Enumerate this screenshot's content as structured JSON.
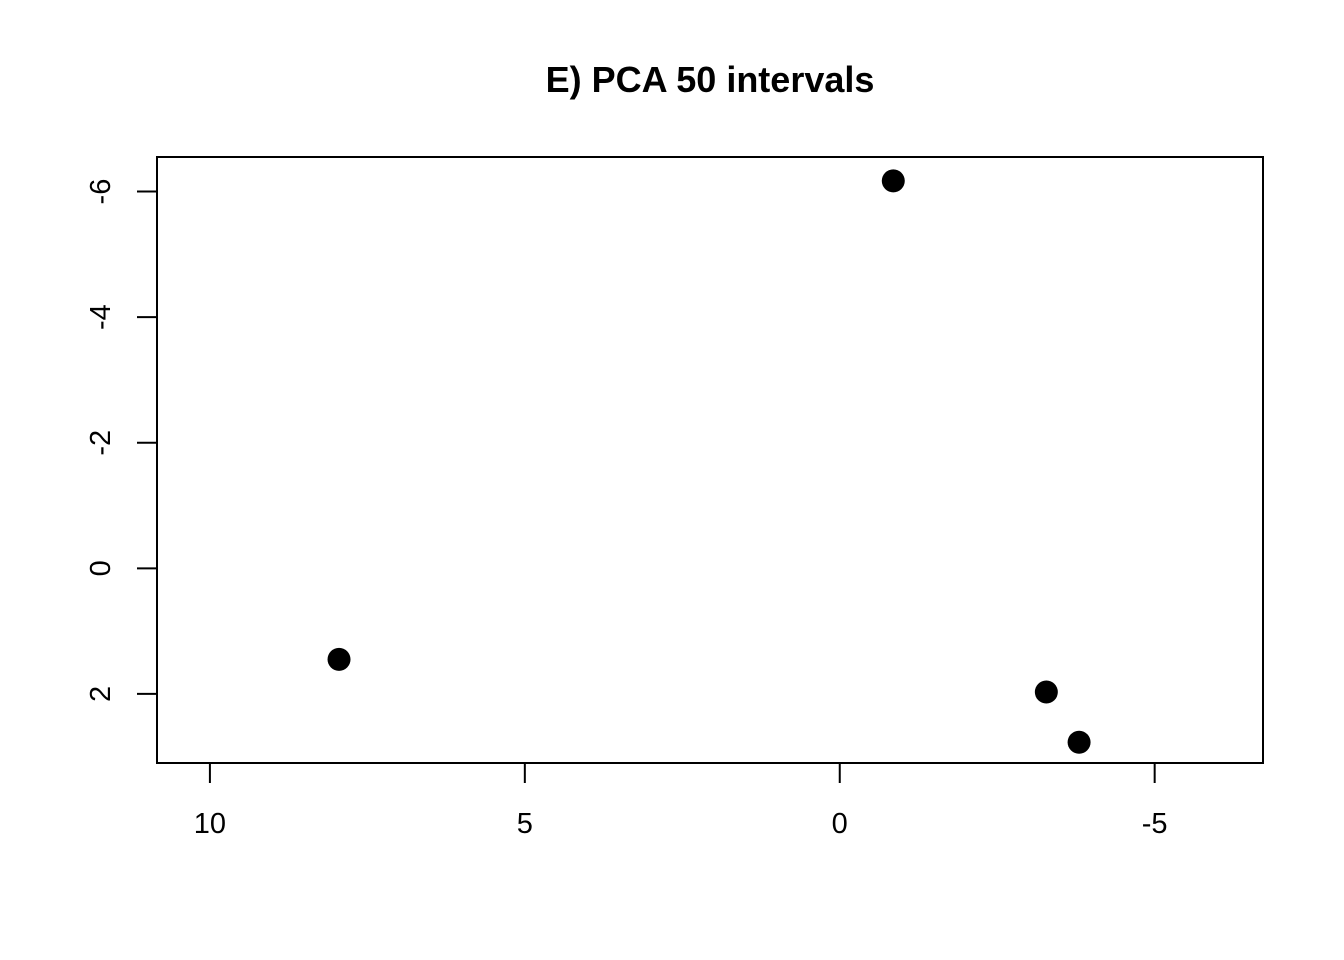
{
  "chart_data": {
    "type": "scatter",
    "title": "E) PCA 50 intervals",
    "xlabel": "",
    "ylabel": "",
    "x_reversed": true,
    "y_reversed": true,
    "xlim": [
      10.84,
      -6.72
    ],
    "ylim": [
      3.1,
      -6.55
    ],
    "x_ticks": [
      10,
      5,
      0,
      -5
    ],
    "x_tick_labels": [
      "10",
      "5",
      "0",
      "-5"
    ],
    "y_ticks": [
      -6,
      -4,
      -2,
      0,
      2
    ],
    "y_tick_labels": [
      "-6",
      "-4",
      "-2",
      "0",
      "2"
    ],
    "grid": false,
    "marker_color": "#000000",
    "points": [
      {
        "x": 7.95,
        "y": 1.45
      },
      {
        "x": -0.85,
        "y": -6.17
      },
      {
        "x": -3.28,
        "y": 1.97
      },
      {
        "x": -3.8,
        "y": 2.77
      }
    ]
  }
}
